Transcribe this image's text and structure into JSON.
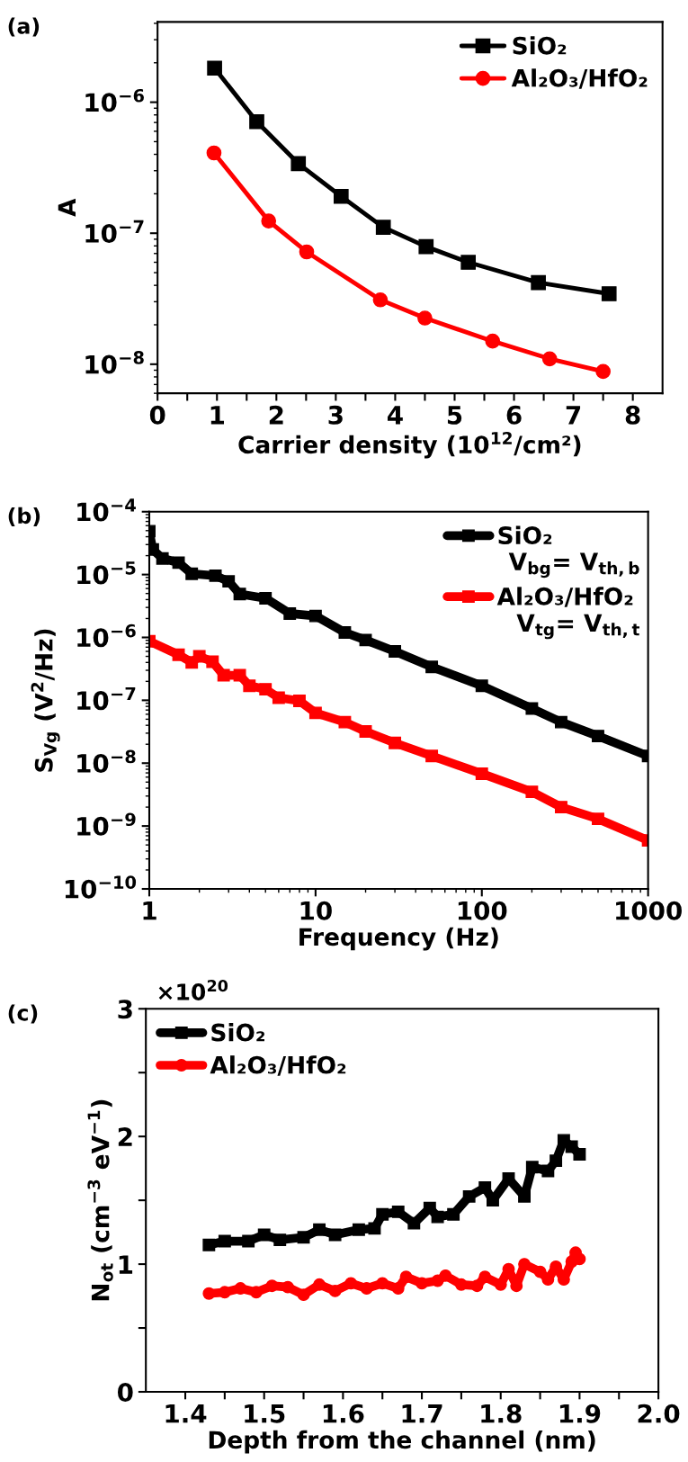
{
  "chart_data": [
    {
      "type": "line",
      "xlabel": "Carrier density (10$^{12}$/cm²)",
      "ylabel": "A",
      "log": "y",
      "legend": "top right",
      "grid": false,
      "annotations": [
        "(a)"
      ],
      "xlim": [
        0,
        8.5
      ],
      "xticks": [
        0,
        {
          "value": 0.5,
          "label": null
        },
        1,
        {
          "value": 1.5,
          "label": null
        },
        2,
        {
          "value": 2.5,
          "label": null
        },
        3,
        {
          "value": 3.5,
          "label": null
        },
        4,
        {
          "value": 4.5,
          "label": null
        },
        5,
        {
          "value": 5.5,
          "label": null
        },
        6,
        {
          "value": 6.5,
          "label": null
        },
        7,
        {
          "value": 7.5,
          "label": null
        },
        8
      ],
      "ylim": [
        6e-09,
        4.1e-06
      ],
      "yticks": [
        {
          "value": 1e-08,
          "label": "10$^{−8}$"
        },
        {
          "value": 1e-07,
          "label": "10$^{−7}$"
        },
        {
          "value": 1e-06,
          "label": "10$^{−6}$"
        }
      ],
      "series": [
        {
          "name": "SiO₂",
          "color": "#000000",
          "marker": "square",
          "x": [
            0.96,
            1.67,
            2.37,
            3.09,
            3.8,
            4.52,
            5.23,
            6.41,
            7.6
          ],
          "values": [
            1.82e-06,
            7.1e-07,
            3.4e-07,
            1.91e-07,
            1.11e-07,
            7.9e-08,
            6e-08,
            4.2e-08,
            3.45e-08
          ]
        },
        {
          "name": "Al₂O₃/HfO₂",
          "color": "#ff0000",
          "marker": "circle",
          "x": [
            0.95,
            1.87,
            2.51,
            3.75,
            4.5,
            5.64,
            6.6,
            7.5
          ],
          "values": [
            4.1e-07,
            1.24e-07,
            7.2e-08,
            3.1e-08,
            2.25e-08,
            1.5e-08,
            1.1e-08,
            8.8e-09
          ]
        }
      ]
    },
    {
      "type": "line",
      "xlabel": "Frequency (Hz)",
      "ylabel": "S$_{Vg}$ (V$^{2}$/Hz)",
      "log": "xy",
      "legend": "top right",
      "grid": false,
      "annotations": [
        "(b)",
        "V$_{bg}$= V$_{th,b}$",
        "V$_{tg}$= V$_{th,t}$"
      ],
      "xlim": [
        1,
        1000
      ],
      "xticks": [
        1,
        10,
        100,
        1000
      ],
      "ylim": [
        1e-10,
        0.0001
      ],
      "yticks": [
        {
          "value": 1e-10,
          "label": "10$^{−10}$"
        },
        {
          "value": 1e-09,
          "label": "10$^{−9}$"
        },
        {
          "value": 1e-08,
          "label": "10$^{−8}$"
        },
        {
          "value": 1e-07,
          "label": "10$^{−7}$"
        },
        {
          "value": 1e-06,
          "label": "10$^{−6}$"
        },
        {
          "value": 1e-05,
          "label": "10$^{−5}$"
        },
        {
          "value": 0.0001,
          "label": "10$^{−4}$"
        }
      ],
      "series": [
        {
          "name": "SiO₂",
          "color": "#000000",
          "marker": "square",
          "x": [
            1,
            1.05,
            1.2,
            1.5,
            1.8,
            2.5,
            3,
            3.5,
            5,
            7,
            10,
            15,
            20,
            30,
            50,
            100,
            200,
            300,
            500,
            1000
          ],
          "values": [
            4.9e-05,
            2.5e-05,
            1.8e-05,
            1.55e-05,
            1.03e-05,
            9.6e-06,
            7.8e-06,
            4.9e-06,
            4.2e-06,
            2.4e-06,
            2.2e-06,
            1.2e-06,
            9.1e-07,
            6e-07,
            3.4e-07,
            1.7e-07,
            7.4e-08,
            4.5e-08,
            2.7e-08,
            1.3e-08
          ]
        },
        {
          "name": "Al₂O₃/HfO₂",
          "color": "#ff0000",
          "marker": "square",
          "x": [
            1,
            1.5,
            1.8,
            2,
            2.4,
            2.8,
            3.5,
            4,
            5,
            6,
            8,
            10,
            15,
            20,
            30,
            50,
            100,
            200,
            300,
            500,
            1000
          ],
          "values": [
            8.7e-07,
            5.3e-07,
            4e-07,
            5e-07,
            4.1e-07,
            2.5e-07,
            2.5e-07,
            1.7e-07,
            1.5e-07,
            1.1e-07,
            9.8e-08,
            6.3e-08,
            4.5e-08,
            3.2e-08,
            2.1e-08,
            1.3e-08,
            6.8e-09,
            3.5e-09,
            2e-09,
            1.3e-09,
            5.9e-10
          ]
        }
      ]
    },
    {
      "type": "line",
      "xlabel": "Depth from the channel (nm)",
      "ylabel": "N$_{ot}$ (cm$^{−3}$ eV$^{−1}$)",
      "legend": "top left",
      "grid": false,
      "annotations": [
        "(c)",
        "×10$^{20}$"
      ],
      "xlim": [
        1.35,
        2.0
      ],
      "xticks": [
        {
          "value": 1.4,
          "label": "1.4"
        },
        {
          "value": 1.45,
          "label": null
        },
        {
          "value": 1.5,
          "label": "1.5"
        },
        {
          "value": 1.55,
          "label": null
        },
        {
          "value": 1.6,
          "label": "1.6"
        },
        {
          "value": 1.65,
          "label": null
        },
        {
          "value": 1.7,
          "label": "1.7"
        },
        {
          "value": 1.75,
          "label": null
        },
        {
          "value": 1.8,
          "label": "1.8"
        },
        {
          "value": 1.85,
          "label": null
        },
        {
          "value": 1.9,
          "label": "1.9"
        },
        {
          "value": 1.95,
          "label": null
        },
        {
          "value": 2.0,
          "label": "2.0"
        }
      ],
      "ylim": [
        0,
        3
      ],
      "yticks": [
        0,
        {
          "value": 0.5,
          "label": null
        },
        1,
        {
          "value": 1.5,
          "label": null
        },
        2,
        {
          "value": 2.5,
          "label": null
        },
        3
      ],
      "series": [
        {
          "name": "SiO₂",
          "color": "#000000",
          "marker": "square",
          "x": [
            1.43,
            1.45,
            1.48,
            1.5,
            1.52,
            1.55,
            1.57,
            1.59,
            1.62,
            1.64,
            1.65,
            1.67,
            1.69,
            1.71,
            1.72,
            1.74,
            1.76,
            1.78,
            1.79,
            1.81,
            1.83,
            1.84,
            1.86,
            1.87,
            1.88,
            1.89,
            1.9
          ],
          "values": [
            1.15,
            1.18,
            1.18,
            1.23,
            1.19,
            1.21,
            1.27,
            1.23,
            1.27,
            1.28,
            1.39,
            1.41,
            1.32,
            1.44,
            1.37,
            1.39,
            1.53,
            1.6,
            1.5,
            1.67,
            1.53,
            1.76,
            1.73,
            1.81,
            1.97,
            1.92,
            1.86
          ]
        },
        {
          "name": "Al₂O₃/HfO₂",
          "color": "#ff0000",
          "marker": "circle",
          "x": [
            1.43,
            1.45,
            1.47,
            1.49,
            1.51,
            1.53,
            1.55,
            1.57,
            1.59,
            1.61,
            1.63,
            1.65,
            1.67,
            1.68,
            1.7,
            1.72,
            1.73,
            1.75,
            1.77,
            1.78,
            1.8,
            1.81,
            1.82,
            1.83,
            1.85,
            1.86,
            1.87,
            1.88,
            1.89,
            1.895,
            1.9
          ],
          "values": [
            0.77,
            0.78,
            0.81,
            0.78,
            0.83,
            0.82,
            0.76,
            0.84,
            0.79,
            0.85,
            0.81,
            0.85,
            0.81,
            0.9,
            0.85,
            0.87,
            0.91,
            0.84,
            0.83,
            0.9,
            0.84,
            0.96,
            0.83,
            1.0,
            0.94,
            0.88,
            0.98,
            0.88,
            1.02,
            1.09,
            1.04
          ]
        }
      ]
    }
  ]
}
